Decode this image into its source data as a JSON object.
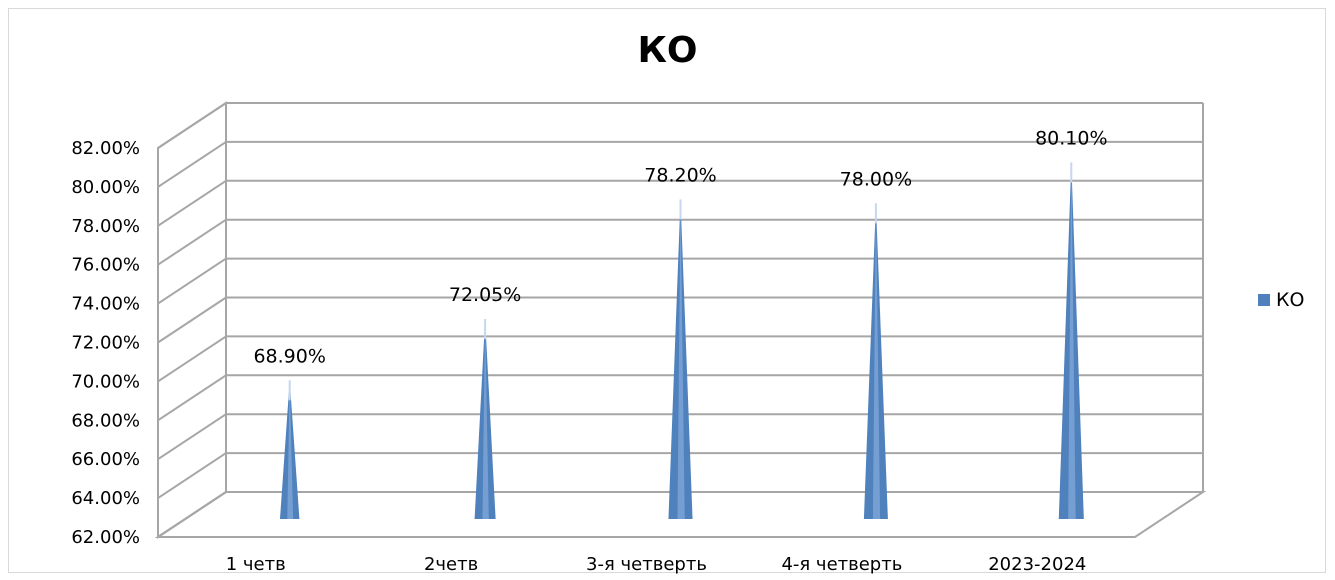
{
  "chart_data": {
    "type": "bar",
    "title": "КО",
    "categories": [
      "1 четв",
      "2четв",
      "3-я четверть",
      "4-я четверть",
      "2023-2024"
    ],
    "series": [
      {
        "name": "КО",
        "values": [
          68.9,
          72.05,
          78.2,
          78.0,
          80.1
        ],
        "color": "#4f81bd"
      }
    ],
    "data_labels": [
      "68.90%",
      "72.05%",
      "78.20%",
      "78.00%",
      "80.10%"
    ],
    "yticks": [
      "62.00%",
      "64.00%",
      "66.00%",
      "68.00%",
      "70.00%",
      "72.00%",
      "74.00%",
      "76.00%",
      "78.00%",
      "80.00%",
      "82.00%"
    ],
    "ylim": [
      62,
      82
    ],
    "grid": true,
    "legend_position": "right",
    "style": "3d-cone"
  }
}
